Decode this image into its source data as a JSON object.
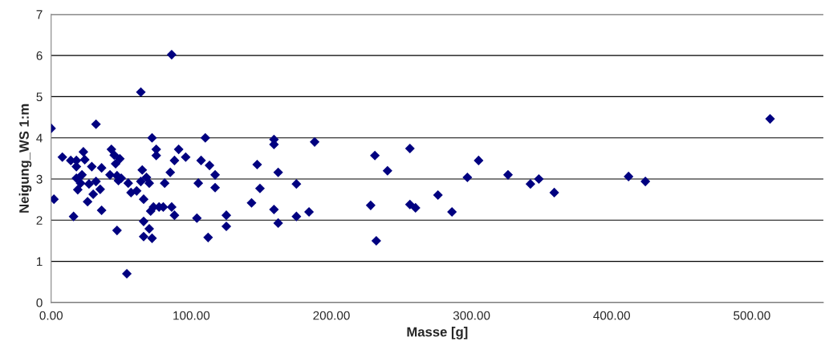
{
  "chart_data": {
    "type": "scatter",
    "xlabel": "Masse [g]",
    "ylabel": "Neigung_WS 1:m",
    "xlim": [
      0,
      551
    ],
    "ylim": [
      0,
      7
    ],
    "xticks": [
      {
        "value": 0,
        "label": "0.00"
      },
      {
        "value": 100,
        "label": "100.00"
      },
      {
        "value": 200,
        "label": "200.00"
      },
      {
        "value": 300,
        "label": "300.00"
      },
      {
        "value": 400,
        "label": "400.00"
      },
      {
        "value": 500,
        "label": "500.00"
      }
    ],
    "yticks": [
      0,
      1,
      2,
      3,
      4,
      5,
      6,
      7
    ],
    "grid": "y",
    "marker": "diamond",
    "series": [
      {
        "color": "#000080",
        "x": [
          0,
          2,
          8,
          14,
          16,
          18,
          18,
          18,
          19,
          21,
          22,
          23,
          24,
          26,
          27,
          29,
          30,
          32,
          32,
          35,
          36,
          36,
          42,
          43,
          45,
          46,
          47,
          47,
          48,
          49,
          50,
          55,
          54,
          57,
          61,
          64,
          64,
          65,
          66,
          66,
          66,
          68,
          70,
          70,
          71,
          72,
          72,
          73,
          75,
          75,
          77,
          80,
          81,
          85,
          86,
          86,
          88,
          88,
          91,
          96,
          104,
          105,
          107,
          110,
          112,
          113,
          117,
          117,
          125,
          125,
          143,
          147,
          149,
          159,
          159,
          159,
          162,
          162,
          175,
          175,
          184,
          188,
          228,
          231,
          232,
          240,
          256,
          256,
          260,
          276,
          286,
          297,
          305,
          326,
          342,
          348,
          359,
          412,
          424,
          513
        ],
        "values": [
          4.23,
          2.51,
          3.53,
          3.45,
          2.09,
          3.45,
          3.3,
          3.02,
          2.74,
          2.9,
          3.1,
          3.66,
          3.47,
          2.45,
          2.88,
          3.3,
          2.63,
          4.33,
          2.94,
          2.75,
          3.27,
          2.24,
          3.1,
          3.72,
          3.58,
          3.37,
          1.75,
          3.08,
          2.96,
          3.49,
          3.02,
          2.9,
          0.7,
          2.67,
          2.71,
          2.94,
          5.11,
          3.22,
          2.51,
          1.97,
          1.6,
          3.04,
          1.79,
          2.9,
          2.22,
          4.0,
          1.56,
          2.32,
          3.72,
          3.57,
          2.32,
          2.32,
          2.9,
          3.16,
          2.32,
          6.02,
          2.12,
          3.45,
          3.72,
          3.53,
          2.05,
          2.9,
          3.45,
          4.0,
          1.58,
          3.33,
          2.79,
          3.1,
          2.12,
          1.85,
          2.42,
          3.35,
          2.77,
          2.26,
          3.96,
          3.84,
          3.16,
          1.93,
          2.88,
          2.09,
          2.2,
          3.9,
          2.36,
          3.57,
          1.5,
          3.2,
          3.74,
          2.38,
          2.3,
          2.61,
          2.2,
          3.04,
          3.45,
          3.1,
          2.88,
          3.0,
          2.67,
          3.06,
          2.94,
          4.46
        ]
      }
    ]
  }
}
